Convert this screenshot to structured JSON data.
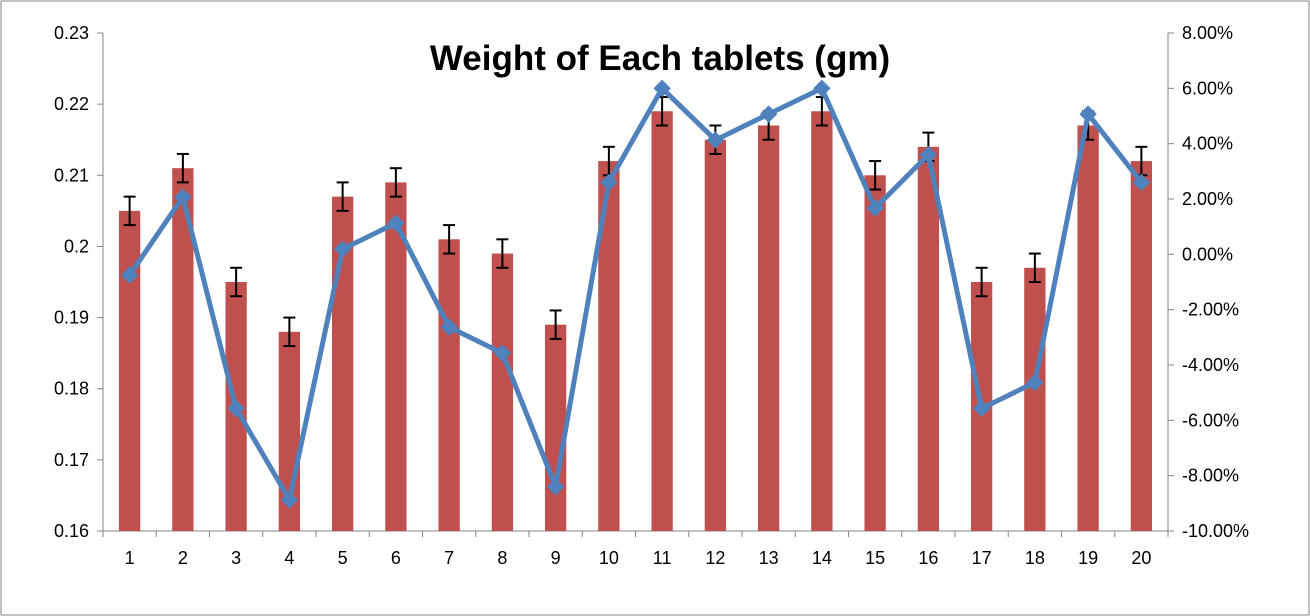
{
  "chart_data": {
    "type": "bar",
    "title": "Weight of Each tablets (gm)",
    "xlabel": "",
    "ylabel": "",
    "categories": [
      "1",
      "2",
      "3",
      "4",
      "5",
      "6",
      "7",
      "8",
      "9",
      "10",
      "11",
      "12",
      "13",
      "14",
      "15",
      "16",
      "17",
      "18",
      "19",
      "20"
    ],
    "series": [
      {
        "kind": "bar",
        "axis": "left",
        "color": "#C0504D",
        "values": [
          0.205,
          0.211,
          0.195,
          0.188,
          0.207,
          0.209,
          0.201,
          0.199,
          0.189,
          0.212,
          0.219,
          0.215,
          0.217,
          0.219,
          0.21,
          0.214,
          0.195,
          0.197,
          0.217,
          0.212
        ],
        "error": 0.002
      },
      {
        "kind": "line",
        "axis": "right",
        "color": "#4F81BD",
        "marker": "diamond",
        "values": [
          -0.75,
          2.07,
          -5.57,
          -8.87,
          0.19,
          1.13,
          -2.63,
          -3.57,
          -8.4,
          2.6,
          6.0,
          4.13,
          5.07,
          6.0,
          1.67,
          3.6,
          -5.57,
          -4.63,
          5.07,
          2.6
        ]
      }
    ],
    "y_left": {
      "min": 0.16,
      "max": 0.23,
      "ticks": [
        "0.16",
        "0.17",
        "0.18",
        "0.19",
        "0.2",
        "0.21",
        "0.22",
        "0.23"
      ]
    },
    "y_right": {
      "min": -10,
      "max": 8,
      "ticks": [
        "-10.00%",
        "-8.00%",
        "-6.00%",
        "-4.00%",
        "-2.00%",
        "0.00%",
        "2.00%",
        "4.00%",
        "6.00%",
        "8.00%"
      ]
    },
    "grid": false,
    "legend": "none"
  }
}
